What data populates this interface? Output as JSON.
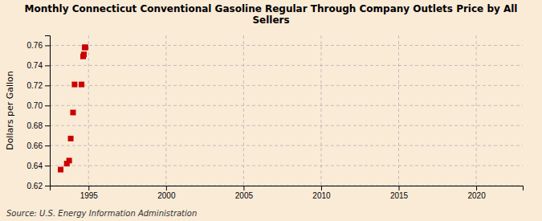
{
  "chart_data": {
    "type": "scatter",
    "title": "Monthly Connecticut Conventional Gasoline Regular Through Company Outlets Price by All\nSellers",
    "ylabel": "Dollars per Gallon",
    "annotation": "Source: U.S. Energy Information Administration",
    "x": [
      1993.2,
      1993.6,
      1993.75,
      1993.85,
      1994.0,
      1994.1,
      1994.55,
      1994.65,
      1994.7,
      1994.75,
      1994.8
    ],
    "values": [
      0.636,
      0.642,
      0.645,
      0.667,
      0.693,
      0.721,
      0.721,
      0.749,
      0.751,
      0.758,
      0.758
    ],
    "color": "#cc0000",
    "marker": "square",
    "xlim": [
      1992.5,
      2023
    ],
    "ylim": [
      0.62,
      0.77
    ],
    "xticks": [
      1995,
      2000,
      2005,
      2010,
      2015,
      2020
    ],
    "yticks": [
      0.62,
      0.64,
      0.66,
      0.68,
      {
        "value": 0.7,
        "label": "0.70"
      },
      0.72,
      0.74,
      0.76
    ],
    "grid": true
  }
}
